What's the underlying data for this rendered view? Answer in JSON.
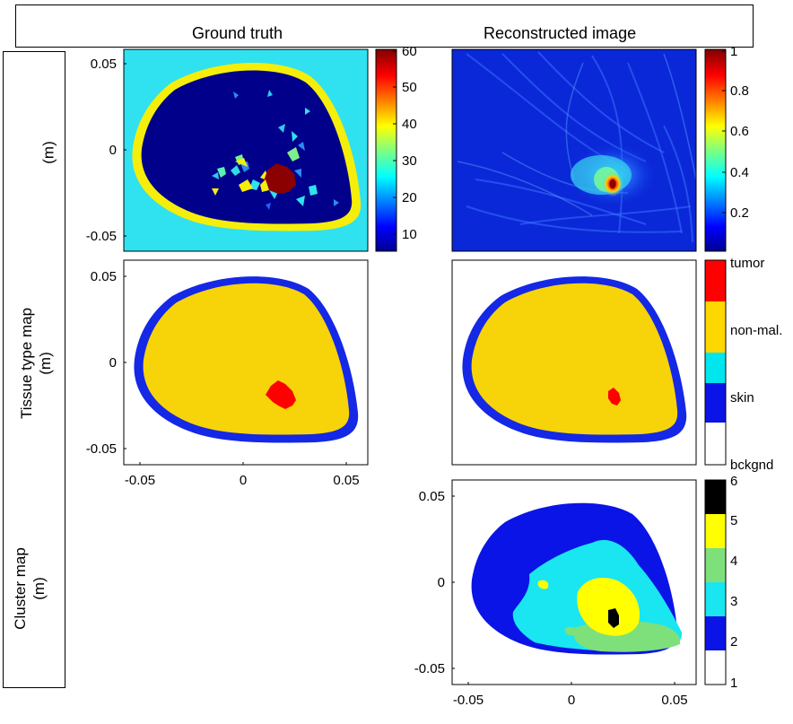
{
  "header": {
    "col_titles": [
      "Ground truth",
      "Reconstructed image"
    ]
  },
  "row_labels": {
    "row1": "(m)",
    "row2_line1": "Tissue type map",
    "row2_line2": "(m)",
    "row3_line1": "Cluster map",
    "row3_line2": "(m)"
  },
  "chart_data": [
    {
      "type": "heatmap",
      "panel": "ground-truth-property-map",
      "column": "Ground truth",
      "ylabel": "(m)",
      "y_ticks": [
        "0.05",
        "0",
        "-0.05"
      ],
      "xlim": [
        -0.06,
        0.06
      ],
      "ylim": [
        -0.06,
        0.06
      ],
      "colorbar": {
        "colormap": "jet",
        "ticks": [
          "60",
          "50",
          "40",
          "30",
          "20",
          "10"
        ],
        "range": [
          5,
          60
        ]
      },
      "background_level": 24,
      "interior_level": 6,
      "skin_level": 42,
      "tumor_level": 60,
      "tumor_center": [
        0.017,
        -0.018
      ]
    },
    {
      "type": "heatmap",
      "panel": "reconstructed-property-map",
      "column": "Reconstructed image",
      "xlim": [
        -0.06,
        0.06
      ],
      "ylim": [
        -0.06,
        0.06
      ],
      "colorbar": {
        "colormap": "jet",
        "ticks": [
          "1",
          "0.8",
          "0.6",
          "0.4",
          "0.2"
        ],
        "range": [
          0,
          1
        ]
      },
      "peak_value": 1.0,
      "peak_center": [
        0.019,
        -0.019
      ]
    },
    {
      "type": "heatmap",
      "panel": "ground-truth-tissue-map",
      "column": "Ground truth",
      "ylabel": "(m)",
      "y_ticks": [
        "0.05",
        "0",
        "-0.05"
      ],
      "x_ticks": [
        "-0.05",
        "0",
        "0.05"
      ],
      "xlim": [
        -0.06,
        0.06
      ],
      "ylim": [
        -0.06,
        0.06
      ],
      "classes": [
        "bckgnd",
        "skin",
        "non-mal.",
        "tumor"
      ]
    },
    {
      "type": "heatmap",
      "panel": "reconstructed-tissue-map",
      "column": "Reconstructed image",
      "xlim": [
        -0.06,
        0.06
      ],
      "ylim": [
        -0.06,
        0.06
      ],
      "colorbar": {
        "labels": [
          "tumor",
          "non-mal.",
          "skin",
          "bckgnd"
        ],
        "colors": [
          "#ff0000",
          "#ffd700",
          "#00e5ee",
          "#0a14e6",
          "#ffffff"
        ]
      }
    },
    {
      "type": "heatmap",
      "panel": "reconstructed-cluster-map",
      "column": "Reconstructed image",
      "ylabel": "(m)",
      "y_ticks": [
        "0.05",
        "0",
        "-0.05"
      ],
      "x_ticks": [
        "-0.05",
        "0",
        "0.05"
      ],
      "xlim": [
        -0.06,
        0.06
      ],
      "ylim": [
        -0.06,
        0.06
      ],
      "colorbar": {
        "ticks": [
          "6",
          "5",
          "4",
          "3",
          "2",
          "1"
        ],
        "colors": [
          "#000000",
          "#ffff00",
          "#7ee07a",
          "#19e6f0",
          "#0a14e6",
          "#ffffff"
        ]
      }
    }
  ],
  "colors": {
    "bg_cyan": "#30e1f0",
    "navy": "#00008b",
    "yellow": "#f5ee0a",
    "tumor_dark": "#8b0000",
    "tissue_yellow": "#f7d30a",
    "skin_blue": "#1428e6",
    "tumor_red": "#ff0000",
    "cluster_blue": "#0a14e6"
  }
}
